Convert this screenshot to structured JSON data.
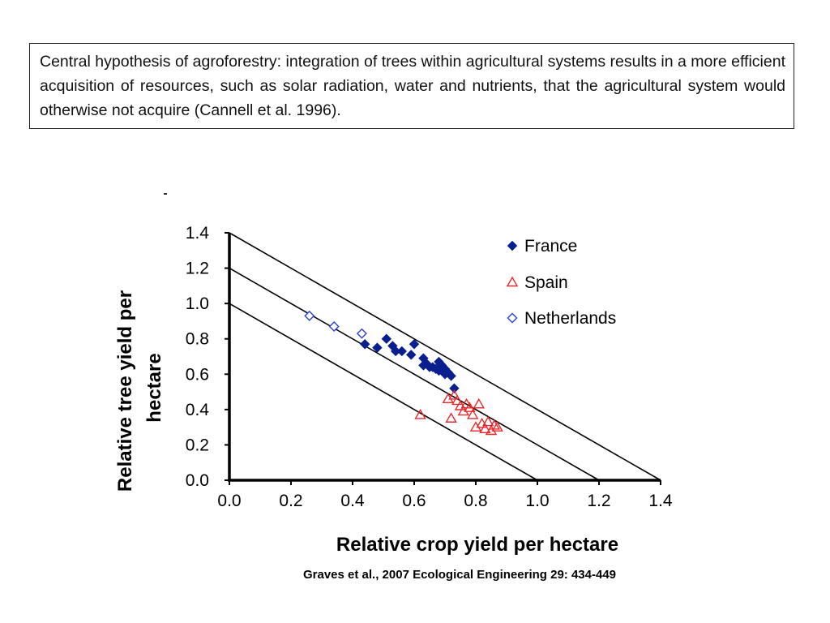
{
  "hypothesis": {
    "text": "Central hypothesis of agroforestry: integration of trees within agricultural systems results in a more efficient acquisition of resources, such as solar radiation, water and nutrients, that the agricultural system would otherwise not acquire (Cannell et al. 1996)."
  },
  "citation": "Graves et al., 2007 Ecological Engineering 29: 434-449",
  "chart_data": {
    "type": "scatter",
    "xlabel": "Relative crop yield per hectare",
    "ylabel": "Relative tree yield per hectare",
    "xlim": [
      0,
      1.4
    ],
    "ylim": [
      0,
      1.4
    ],
    "xticks": [
      "0.0",
      "0.2",
      "0.4",
      "0.6",
      "0.8",
      "1.0",
      "1.2",
      "1.4"
    ],
    "yticks": [
      "0.0",
      "0.2",
      "0.4",
      "0.6",
      "0.8",
      "1.0",
      "1.2",
      "1.4"
    ],
    "grid": false,
    "legend_position": "top-right",
    "reference_lines": [
      {
        "intercept": 1.0
      },
      {
        "intercept": 1.2
      },
      {
        "intercept": 1.4
      }
    ],
    "series": [
      {
        "name": "France",
        "marker": "filled-diamond",
        "color": "#0a1f8f",
        "points": [
          [
            0.44,
            0.77
          ],
          [
            0.48,
            0.75
          ],
          [
            0.51,
            0.8
          ],
          [
            0.53,
            0.76
          ],
          [
            0.54,
            0.73
          ],
          [
            0.56,
            0.73
          ],
          [
            0.59,
            0.71
          ],
          [
            0.6,
            0.77
          ],
          [
            0.63,
            0.69
          ],
          [
            0.63,
            0.65
          ],
          [
            0.64,
            0.66
          ],
          [
            0.65,
            0.64
          ],
          [
            0.66,
            0.64
          ],
          [
            0.67,
            0.63
          ],
          [
            0.68,
            0.67
          ],
          [
            0.68,
            0.62
          ],
          [
            0.69,
            0.65
          ],
          [
            0.7,
            0.6
          ],
          [
            0.7,
            0.63
          ],
          [
            0.71,
            0.61
          ],
          [
            0.72,
            0.59
          ],
          [
            0.73,
            0.52
          ]
        ]
      },
      {
        "name": "Spain",
        "marker": "open-triangle",
        "color": "#e8282c",
        "points": [
          [
            0.62,
            0.37
          ],
          [
            0.71,
            0.46
          ],
          [
            0.72,
            0.35
          ],
          [
            0.73,
            0.48
          ],
          [
            0.74,
            0.45
          ],
          [
            0.75,
            0.42
          ],
          [
            0.76,
            0.39
          ],
          [
            0.77,
            0.43
          ],
          [
            0.78,
            0.41
          ],
          [
            0.79,
            0.37
          ],
          [
            0.8,
            0.3
          ],
          [
            0.81,
            0.43
          ],
          [
            0.82,
            0.32
          ],
          [
            0.83,
            0.29
          ],
          [
            0.84,
            0.33
          ],
          [
            0.85,
            0.28
          ],
          [
            0.86,
            0.31
          ],
          [
            0.87,
            0.3
          ]
        ]
      },
      {
        "name": "Netherlands",
        "marker": "open-diamond",
        "color": "#2b3fd6",
        "points": [
          [
            0.26,
            0.93
          ],
          [
            0.34,
            0.87
          ],
          [
            0.43,
            0.83
          ]
        ]
      }
    ]
  }
}
